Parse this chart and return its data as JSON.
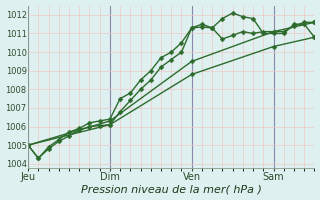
{
  "background_color": "#dff0f0",
  "grid_color": "#f0c8c8",
  "vline_color": "#8888aa",
  "line_color": "#2d6b2d",
  "ylabel": "Pression niveau de la mer( hPa )",
  "ylim": [
    1003.8,
    1012.5
  ],
  "yticks": [
    1004,
    1005,
    1006,
    1007,
    1008,
    1009,
    1010,
    1011,
    1012
  ],
  "day_labels": [
    "Jeu",
    "Dim",
    "Ven",
    "Sam"
  ],
  "day_positions": [
    0,
    8,
    16,
    24
  ],
  "xlim": [
    0,
    28
  ],
  "lines": [
    {
      "x": [
        0,
        1,
        2,
        3,
        4,
        5,
        6,
        7,
        8,
        9,
        10,
        11,
        12,
        13,
        14,
        15,
        16,
        17,
        18,
        19,
        20,
        21,
        22,
        23,
        24,
        25,
        26,
        27,
        28
      ],
      "y": [
        1005.0,
        1004.3,
        1004.8,
        1005.2,
        1005.5,
        1005.8,
        1006.0,
        1006.05,
        1006.1,
        1006.8,
        1007.4,
        1008.0,
        1008.5,
        1009.2,
        1009.6,
        1010.0,
        1011.3,
        1011.35,
        1011.3,
        1010.7,
        1010.9,
        1011.1,
        1011.0,
        1011.1,
        1011.1,
        1011.1,
        1011.4,
        1011.6,
        1011.6
      ]
    },
    {
      "x": [
        0,
        1,
        2,
        3,
        4,
        5,
        6,
        7,
        8,
        9,
        10,
        11,
        12,
        13,
        14,
        15,
        16,
        17,
        18,
        19,
        20,
        21,
        22,
        23,
        24,
        25,
        26,
        27,
        28
      ],
      "y": [
        1005.0,
        1004.3,
        1004.9,
        1005.3,
        1005.7,
        1005.9,
        1006.2,
        1006.3,
        1006.4,
        1007.5,
        1007.8,
        1008.5,
        1009.0,
        1009.7,
        1010.0,
        1010.5,
        1011.3,
        1011.5,
        1011.3,
        1011.8,
        1012.1,
        1011.9,
        1011.8,
        1011.0,
        1011.0,
        1011.0,
        1011.5,
        1011.5,
        1010.8
      ]
    },
    {
      "x": [
        0,
        8,
        16,
        24,
        28
      ],
      "y": [
        1005.0,
        1006.1,
        1008.8,
        1010.3,
        1010.8
      ]
    },
    {
      "x": [
        0,
        8,
        16,
        24,
        28
      ],
      "y": [
        1005.0,
        1006.3,
        1009.5,
        1011.1,
        1011.6
      ]
    }
  ],
  "marker": "D",
  "markersize": 2.5,
  "linewidth": 1.0,
  "label_fontsize": 7,
  "xlabel_fontsize": 8,
  "ytick_fontsize": 6,
  "xtick_fontsize": 7
}
